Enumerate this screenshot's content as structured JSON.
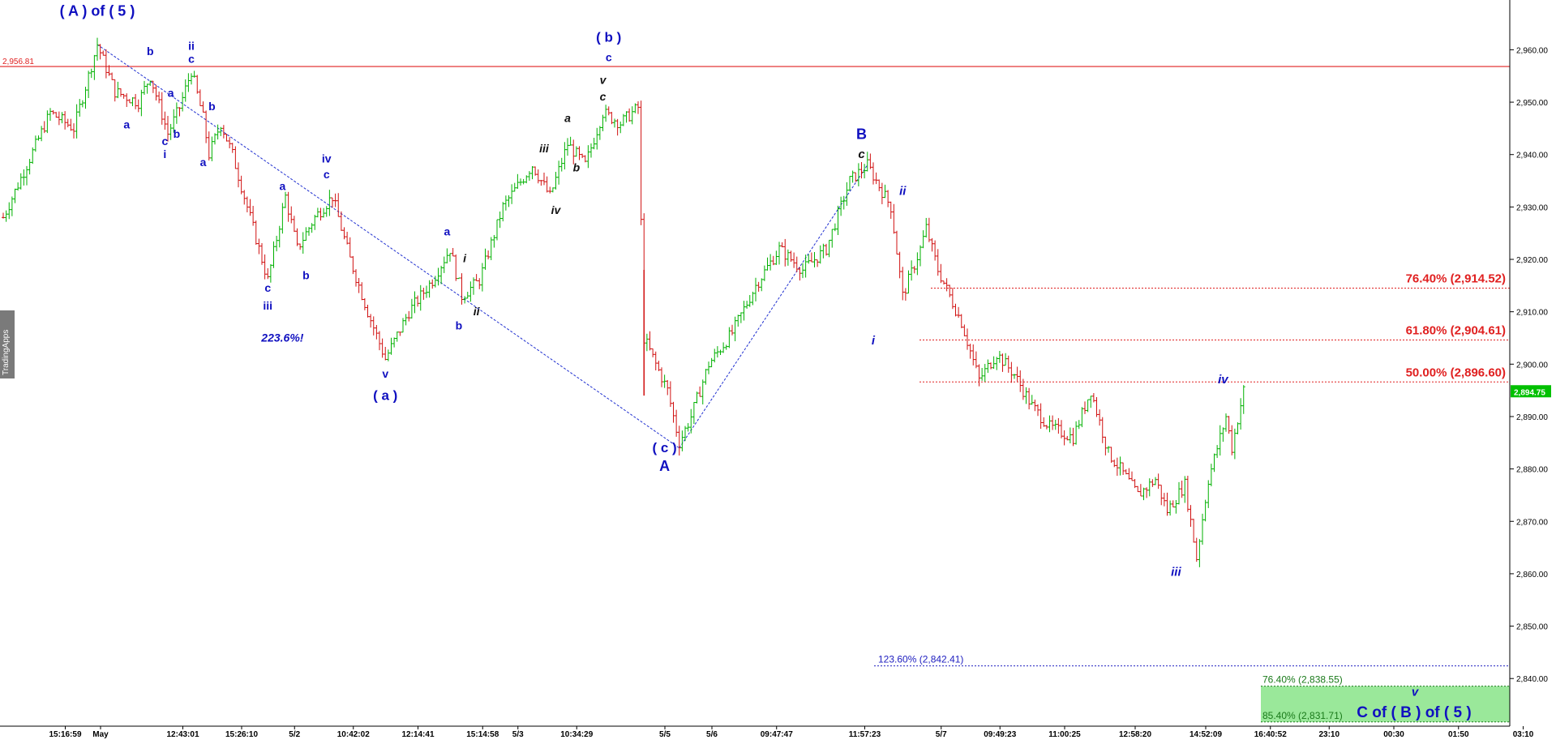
{
  "chart_data": {
    "type": "candlestick",
    "y_axis": {
      "range": [
        2825,
        2970
      ],
      "ticks": [
        2960,
        2950,
        2940,
        2930,
        2920,
        2910,
        2900,
        2890,
        2880,
        2870,
        2860,
        2850,
        2840
      ],
      "tick_labels": [
        "2,960.00",
        "2,950.00",
        "2,940.00",
        "2,930.00",
        "2,920.00",
        "2,910.00",
        "2,900.00",
        "2,890.00",
        "2,880.00",
        "2,870.00",
        "2,860.00",
        "2,850.00",
        "2,840.00"
      ],
      "last_price": 2894.75,
      "last_price_label": "2,894.75"
    },
    "x_axis": {
      "ticks": [
        {
          "i": 6,
          "label": "15:16:59"
        },
        {
          "i": 12,
          "label": "May"
        },
        {
          "i": 26,
          "label": "12:43:01"
        },
        {
          "i": 36,
          "label": "15:26:10"
        },
        {
          "i": 45,
          "label": "5/2"
        },
        {
          "i": 55,
          "label": "10:42:02"
        },
        {
          "i": 66,
          "label": "12:14:41"
        },
        {
          "i": 77,
          "label": "15:14:58"
        },
        {
          "i": 83,
          "label": "5/3"
        },
        {
          "i": 93,
          "label": "10:34:29"
        },
        {
          "i": 108,
          "label": "5/5"
        },
        {
          "i": 116,
          "label": "5/6"
        },
        {
          "i": 127,
          "label": "09:47:47"
        },
        {
          "i": 142,
          "label": "11:57:23"
        },
        {
          "i": 155,
          "label": "5/7"
        },
        {
          "i": 165,
          "label": "09:49:23"
        },
        {
          "i": 176,
          "label": "11:00:25"
        },
        {
          "i": 188,
          "label": "12:58:20"
        },
        {
          "i": 200,
          "label": "14:52:09"
        },
        {
          "i": 211,
          "label": "16:40:52"
        },
        {
          "i": 221,
          "label": "23:10"
        },
        {
          "i": 232,
          "label": "00:30"
        },
        {
          "i": 243,
          "label": "01:50"
        },
        {
          "i": 254,
          "label": "03:10"
        }
      ]
    },
    "price_path": [
      [
        0,
        2928
      ],
      [
        4,
        2938
      ],
      [
        8,
        2948
      ],
      [
        12,
        2945
      ],
      [
        16,
        2961
      ],
      [
        19,
        2952
      ],
      [
        23,
        2950
      ],
      [
        25,
        2955
      ],
      [
        28,
        2944
      ],
      [
        30,
        2949
      ],
      [
        32,
        2956
      ],
      [
        34,
        2947
      ],
      [
        35,
        2940
      ],
      [
        37,
        2946
      ],
      [
        39,
        2940
      ],
      [
        42,
        2928
      ],
      [
        45,
        2916
      ],
      [
        48,
        2932
      ],
      [
        50,
        2922
      ],
      [
        53,
        2928
      ],
      [
        56,
        2932
      ],
      [
        59,
        2920
      ],
      [
        62,
        2910
      ],
      [
        65,
        2901
      ],
      [
        69,
        2910
      ],
      [
        73,
        2916
      ],
      [
        76,
        2922
      ],
      [
        78,
        2913
      ],
      [
        81,
        2916
      ],
      [
        85,
        2930
      ],
      [
        90,
        2938
      ],
      [
        93,
        2932
      ],
      [
        96,
        2942
      ],
      [
        99,
        2938
      ],
      [
        102,
        2948
      ],
      [
        105,
        2946
      ],
      [
        108,
        2949
      ],
      [
        109,
        2905
      ],
      [
        113,
        2895
      ],
      [
        115,
        2885
      ],
      [
        117,
        2890
      ],
      [
        120,
        2900
      ],
      [
        124,
        2906
      ],
      [
        128,
        2915
      ],
      [
        132,
        2922
      ],
      [
        136,
        2918
      ],
      [
        140,
        2922
      ],
      [
        144,
        2935
      ],
      [
        147,
        2938
      ],
      [
        151,
        2930
      ],
      [
        153,
        2913
      ],
      [
        156,
        2922
      ],
      [
        157,
        2926
      ],
      [
        159,
        2918
      ],
      [
        161,
        2913
      ],
      [
        163,
        2908
      ],
      [
        166,
        2897
      ],
      [
        169,
        2902
      ],
      [
        172,
        2898
      ],
      [
        175,
        2892
      ],
      [
        178,
        2888
      ],
      [
        182,
        2886
      ],
      [
        185,
        2895
      ],
      [
        188,
        2883
      ],
      [
        190,
        2880
      ],
      [
        193,
        2875
      ],
      [
        196,
        2878
      ],
      [
        198,
        2872
      ],
      [
        201,
        2877
      ],
      [
        203,
        2863
      ],
      [
        205,
        2878
      ],
      [
        208,
        2890
      ],
      [
        209,
        2884
      ],
      [
        211,
        2895
      ]
    ],
    "horizontal_lines": [
      {
        "y": 2956.81,
        "label": "2,956.81",
        "color": "#e02020",
        "style": "solid"
      },
      {
        "y": 2914.52,
        "label": "76.40% (2,914.52)",
        "color": "#e02020",
        "style": "dotted"
      },
      {
        "y": 2904.61,
        "label": "61.80% (2,904.61)",
        "color": "#e02020",
        "style": "dotted"
      },
      {
        "y": 2896.6,
        "label": "50.00% (2,896.60)",
        "color": "#e02020",
        "style": "dotted"
      },
      {
        "y": 2842.41,
        "label": "123.60% (2,842.41)",
        "color": "#2020c0",
        "style": "dotted"
      },
      {
        "y": 2838.55,
        "label": "76.40% (2,838.55)",
        "color": "#1a7a1a",
        "style": "dotted"
      },
      {
        "y": 2831.71,
        "label": "85.40% (2,831.71)",
        "color": "#1a7a1a",
        "style": "dotted"
      }
    ],
    "target_zone": {
      "y_top": 2838.55,
      "y_bottom": 2831.71,
      "label": "C of ( B ) of ( 5 )",
      "wave_label": "v"
    },
    "trend_lines": [
      {
        "points": [
          [
            16,
            2961
          ],
          [
            115,
            2884
          ]
        ]
      },
      {
        "points": [
          [
            115,
            2884
          ],
          [
            147,
            2938
          ]
        ]
      }
    ],
    "wave_labels": [
      {
        "text": "( A ) of ( 5 )",
        "i": 16,
        "y": 2966.5,
        "color": "#1010c0",
        "size": 18
      },
      {
        "text": "b",
        "i": 25,
        "y": 2959,
        "color": "#1010c0",
        "size": 14
      },
      {
        "text": "ii",
        "i": 32,
        "y": 2960,
        "color": "#1010c0",
        "size": 14
      },
      {
        "text": "c",
        "i": 32,
        "y": 2957.5,
        "color": "#1010c0",
        "size": 14
      },
      {
        "text": "a",
        "i": 28.5,
        "y": 2951,
        "color": "#1010c0",
        "size": 14
      },
      {
        "text": "b",
        "i": 35.5,
        "y": 2948.5,
        "color": "#1010c0",
        "size": 14
      },
      {
        "text": "a",
        "i": 21,
        "y": 2945,
        "color": "#1010c0",
        "size": 14
      },
      {
        "text": "c",
        "i": 27.5,
        "y": 2941.8,
        "color": "#1010c0",
        "size": 14
      },
      {
        "text": "b",
        "i": 29.5,
        "y": 2943.2,
        "color": "#1010c0",
        "size": 14
      },
      {
        "text": "i",
        "i": 27.5,
        "y": 2939.3,
        "color": "#1010c0",
        "size": 14
      },
      {
        "text": "a",
        "i": 34,
        "y": 2937.8,
        "color": "#1010c0",
        "size": 14
      },
      {
        "text": "iv",
        "i": 55,
        "y": 2938.5,
        "color": "#1010c0",
        "size": 14
      },
      {
        "text": "c",
        "i": 55,
        "y": 2935.5,
        "color": "#1010c0",
        "size": 14
      },
      {
        "text": "a",
        "i": 47.5,
        "y": 2933.2,
        "color": "#1010c0",
        "size": 14
      },
      {
        "text": "c",
        "i": 45,
        "y": 2913.8,
        "color": "#1010c0",
        "size": 14
      },
      {
        "text": "iii",
        "i": 45,
        "y": 2910.4,
        "color": "#1010c0",
        "size": 14
      },
      {
        "text": "b",
        "i": 51.5,
        "y": 2916.2,
        "color": "#1010c0",
        "size": 14
      },
      {
        "text": "223.6%!",
        "i": 47.5,
        "y": 2904.3,
        "color": "#1010c0",
        "size": 14,
        "italic": true
      },
      {
        "text": "v",
        "i": 65,
        "y": 2897.4,
        "color": "#1010c0",
        "size": 14
      },
      {
        "text": "( a )",
        "i": 65,
        "y": 2893.2,
        "color": "#1010c0",
        "size": 17
      },
      {
        "text": "a",
        "i": 75.5,
        "y": 2924.6,
        "color": "#1010c0",
        "size": 14
      },
      {
        "text": "b",
        "i": 77.5,
        "y": 2906.6,
        "color": "#1010c0",
        "size": 14
      },
      {
        "text": "i",
        "i": 78.5,
        "y": 2919.5,
        "color": "#111111",
        "size": 14,
        "italic": true
      },
      {
        "text": "ii",
        "i": 80.5,
        "y": 2909.3,
        "color": "#111111",
        "size": 14,
        "italic": true
      },
      {
        "text": "iii",
        "i": 92,
        "y": 2940.4,
        "color": "#111111",
        "size": 14,
        "italic": true
      },
      {
        "text": "iv",
        "i": 94,
        "y": 2928.7,
        "color": "#111111",
        "size": 14,
        "italic": true
      },
      {
        "text": "a",
        "i": 96,
        "y": 2946.2,
        "color": "#111111",
        "size": 14,
        "italic": true
      },
      {
        "text": "b",
        "i": 97.5,
        "y": 2936.8,
        "color": "#111111",
        "size": 14,
        "italic": true
      },
      {
        "text": "( b )",
        "i": 103,
        "y": 2961.5,
        "color": "#1010c0",
        "size": 17
      },
      {
        "text": "c",
        "i": 103,
        "y": 2957.8,
        "color": "#1010c0",
        "size": 14
      },
      {
        "text": "v",
        "i": 102,
        "y": 2953.5,
        "color": "#111111",
        "size": 14,
        "italic": true
      },
      {
        "text": "c",
        "i": 102,
        "y": 2950.3,
        "color": "#111111",
        "size": 14,
        "italic": true
      },
      {
        "text": "( c )",
        "i": 112.5,
        "y": 2883.2,
        "color": "#1010c0",
        "size": 17
      },
      {
        "text": "A",
        "i": 112.5,
        "y": 2879.6,
        "color": "#1010c0",
        "size": 18
      },
      {
        "text": "B",
        "i": 146,
        "y": 2943,
        "color": "#1010c0",
        "size": 18
      },
      {
        "text": "c",
        "i": 146,
        "y": 2939.3,
        "color": "#111111",
        "size": 15,
        "italic": true
      },
      {
        "text": "ii",
        "i": 153,
        "y": 2932.3,
        "color": "#1010c0",
        "size": 15,
        "italic": true
      },
      {
        "text": "i",
        "i": 148,
        "y": 2903.8,
        "color": "#1010c0",
        "size": 15,
        "italic": true
      },
      {
        "text": "iii",
        "i": 199.5,
        "y": 2859.6,
        "color": "#1010c0",
        "size": 15,
        "italic": true
      },
      {
        "text": "iv",
        "i": 207.5,
        "y": 2896.3,
        "color": "#1010c0",
        "size": 15,
        "italic": true
      }
    ],
    "colors": {
      "up": "#00b000",
      "down": "#d01010",
      "axis": "#000000",
      "grid": "#e8e8e8",
      "last_price_bg": "#00c000",
      "zone_fill": "#9ae89a"
    }
  },
  "watermark": "TradingApps"
}
